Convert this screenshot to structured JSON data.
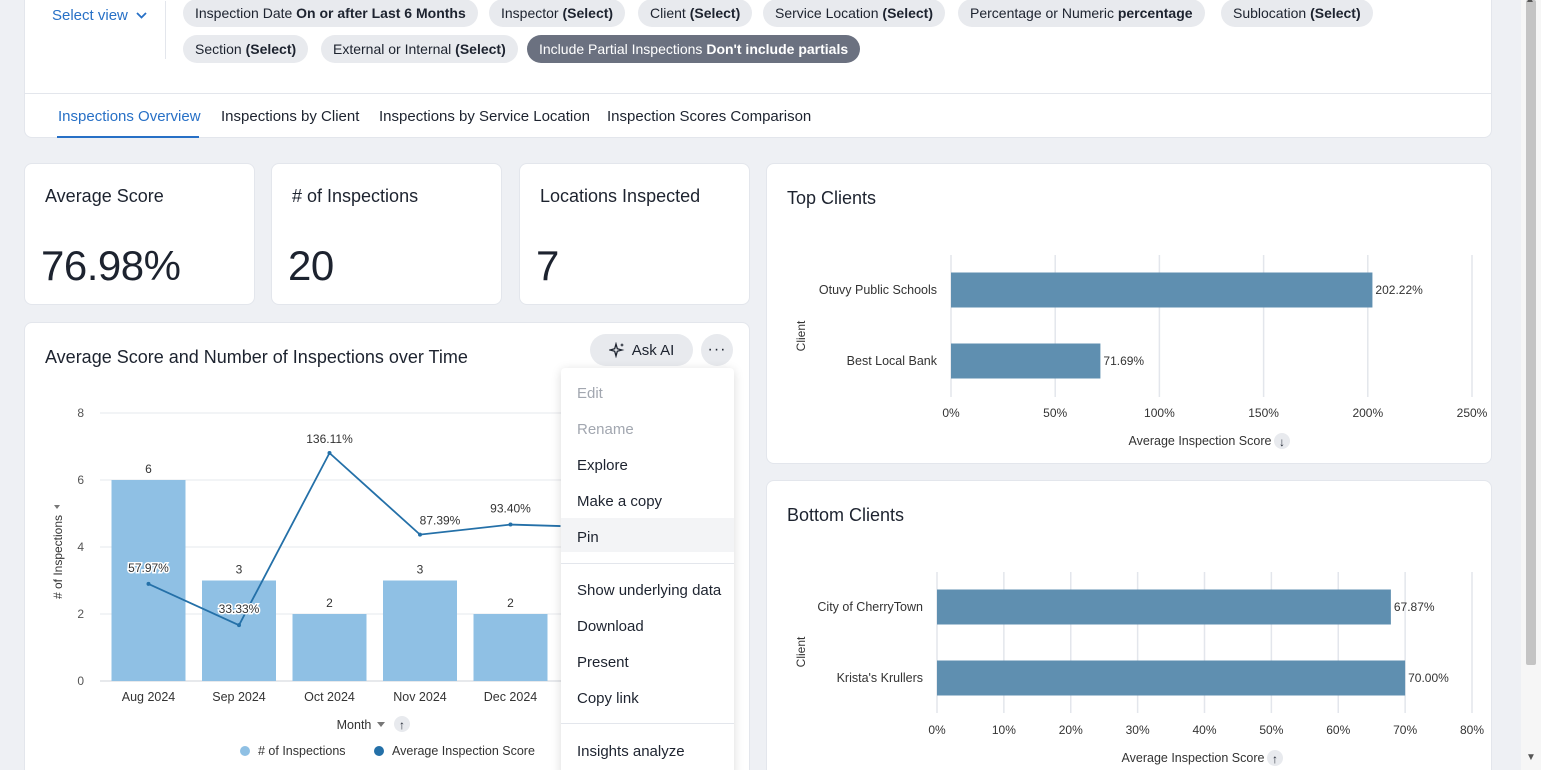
{
  "header": {
    "select_view": "Select view",
    "filters": [
      {
        "name": "Inspection Date ",
        "value": "On or after Last 6 Months"
      },
      {
        "name": "Inspector ",
        "value": "(Select)"
      },
      {
        "name": "Client ",
        "value": "(Select)"
      },
      {
        "name": "Service Location ",
        "value": "(Select)"
      },
      {
        "name": "Percentage or Numeric ",
        "value": "percentage"
      },
      {
        "name": "Sublocation ",
        "value": "(Select)"
      },
      {
        "name": "Section ",
        "value": "(Select)"
      },
      {
        "name": "External or Internal ",
        "value": "(Select)"
      },
      {
        "name": "Include Partial Inspections ",
        "value": "Don't include partials"
      }
    ]
  },
  "tabs": [
    "Inspections Overview",
    "Inspections by Client",
    "Inspections by Service Location",
    "Inspection Scores Comparison"
  ],
  "kpis": [
    {
      "title": "Average Score",
      "value": "76.98%"
    },
    {
      "title": "# of Inspections",
      "value": "20"
    },
    {
      "title": "Locations Inspected",
      "value": "7"
    }
  ],
  "combo_chart": {
    "title": "Average Score and Number of Inspections over Time",
    "ask_ai": "Ask AI",
    "more": "···",
    "menu": {
      "items": [
        "Edit",
        "Rename",
        "Explore",
        "Make a copy",
        "Pin",
        "Show underlying data",
        "Download",
        "Present",
        "Copy link",
        "Insights analyze"
      ]
    }
  },
  "top_clients": {
    "title": "Top Clients"
  },
  "bottom_clients": {
    "title": "Bottom Clients"
  },
  "chart_data": [
    {
      "type": "bar",
      "title": "Average Score and Number of Inspections over Time",
      "categories": [
        "Aug 2024",
        "Sep 2024",
        "Oct 2024",
        "Nov 2024",
        "Dec 2024"
      ],
      "series": [
        {
          "name": "# of Inspections",
          "type": "bar",
          "values": [
            6,
            3,
            2,
            3,
            2
          ],
          "labels": [
            "6",
            "3",
            "2",
            "3",
            "2"
          ],
          "color": "#8fc0e4"
        },
        {
          "name": "Average Inspection Score",
          "type": "line",
          "values": [
            57.97,
            33.33,
            136.11,
            87.39,
            93.4
          ],
          "labels": [
            "57.97%",
            "33.33%",
            "136.11%",
            "87.39%",
            "93.40%"
          ],
          "extends_to": 92.5,
          "color": "#2470a8"
        }
      ],
      "ylabel": "# of Inspections",
      "xlabel": "Month",
      "yticks": [
        "0",
        "2",
        "4",
        "6",
        "8"
      ],
      "ylim": [
        0,
        8
      ],
      "y2lim": [
        0,
        160
      ],
      "grid": true,
      "legend": "bottom"
    },
    {
      "type": "bar",
      "orientation": "horizontal",
      "title": "Top Clients",
      "categories": [
        "Otuvy Public Schools",
        "Best Local Bank"
      ],
      "values": [
        202.22,
        71.69
      ],
      "labels": [
        "202.22%",
        "71.69%"
      ],
      "ylabel": "Client",
      "xlabel": "Average Inspection Score",
      "sort_icon": "↓",
      "xticks": [
        "0%",
        "50%",
        "100%",
        "150%",
        "200%",
        "250%"
      ],
      "xlim": [
        0,
        250
      ],
      "color": "#5f8fb0"
    },
    {
      "type": "bar",
      "orientation": "horizontal",
      "title": "Bottom Clients",
      "categories": [
        "City of CherryTown",
        "Krista's Krullers"
      ],
      "values": [
        67.87,
        70.0
      ],
      "labels": [
        "67.87%",
        "70.00%"
      ],
      "ylabel": "Client",
      "xlabel": "Average Inspection Score",
      "sort_icon": "↑",
      "xticks": [
        "0%",
        "10%",
        "20%",
        "30%",
        "40%",
        "50%",
        "60%",
        "70%",
        "80%"
      ],
      "xlim": [
        0,
        80
      ],
      "color": "#5f8fb0"
    }
  ]
}
